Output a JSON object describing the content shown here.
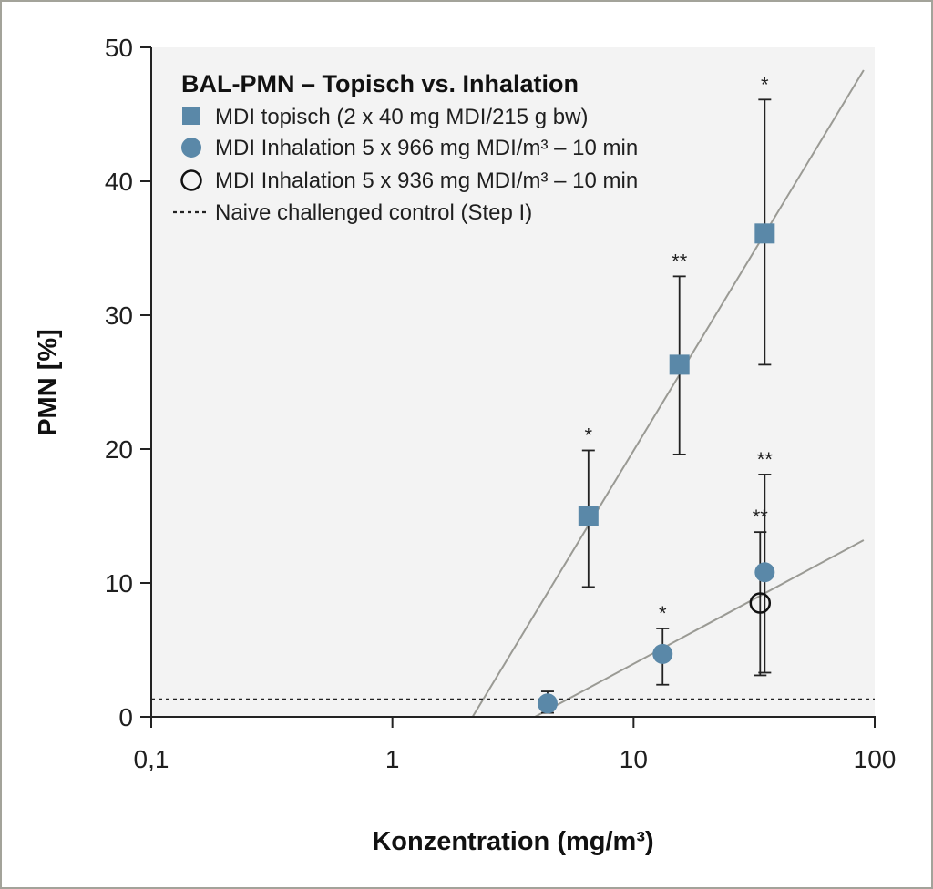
{
  "chart_data": {
    "type": "scatter",
    "title": "BAL-PMN – Topisch vs. Inhalation",
    "xlabel": "Konzentration (mg/m³)",
    "ylabel": "PMN [%]",
    "xscale": "log",
    "xlim": [
      0.1,
      100
    ],
    "ylim": [
      0,
      50
    ],
    "xticks": [
      0.1,
      1,
      10,
      100
    ],
    "xtick_labels": [
      "0,1",
      "1",
      "10",
      "100"
    ],
    "yticks": [
      0,
      10,
      20,
      30,
      40,
      50
    ],
    "ytick_labels": [
      "0",
      "10",
      "20",
      "30",
      "40",
      "50"
    ],
    "grid": false,
    "legend_position": "top-left",
    "colors": {
      "filled": "#5a88a8",
      "background": "#f3f3f3",
      "trend": "#9a9a94",
      "control": "#222222"
    },
    "series": [
      {
        "name": "MDI topisch (2 x 40 mg MDI/215 g bw)",
        "marker": "square",
        "points": [
          {
            "x": 6.5,
            "y": 15.0,
            "err_low": 9.7,
            "err_high": 19.9,
            "sig": "*"
          },
          {
            "x": 15.5,
            "y": 26.3,
            "err_low": 19.6,
            "err_high": 32.9,
            "sig": "**"
          },
          {
            "x": 35,
            "y": 36.1,
            "err_low": 26.3,
            "err_high": 46.1,
            "sig": "*"
          }
        ],
        "trend": {
          "x": [
            2.15,
            90
          ],
          "y": [
            0,
            48.3
          ]
        }
      },
      {
        "name": "MDI Inhalation 5 x 966 mg MDI/m³ – 10 min",
        "marker": "circle",
        "points": [
          {
            "x": 4.4,
            "y": 1.0,
            "err_low": 0.3,
            "err_high": 1.9,
            "sig": ""
          },
          {
            "x": 13.2,
            "y": 4.7,
            "err_low": 2.4,
            "err_high": 6.6,
            "sig": "*"
          },
          {
            "x": 35,
            "y": 10.8,
            "err_low": 3.3,
            "err_high": 18.1,
            "sig": "**"
          }
        ],
        "trend": {
          "x": [
            3.9,
            90
          ],
          "y": [
            0,
            13.2
          ]
        }
      },
      {
        "name": "MDI Inhalation 5 x 936 mg MDI/m³ – 10 min",
        "marker": "open-circle",
        "points": [
          {
            "x": 33.5,
            "y": 8.5,
            "err_low": 3.1,
            "err_high": 13.8,
            "sig": "**"
          }
        ]
      }
    ],
    "reference_line": {
      "name": "Naive challenged control (Step I)",
      "y": 1.3,
      "style": "dotted"
    }
  }
}
